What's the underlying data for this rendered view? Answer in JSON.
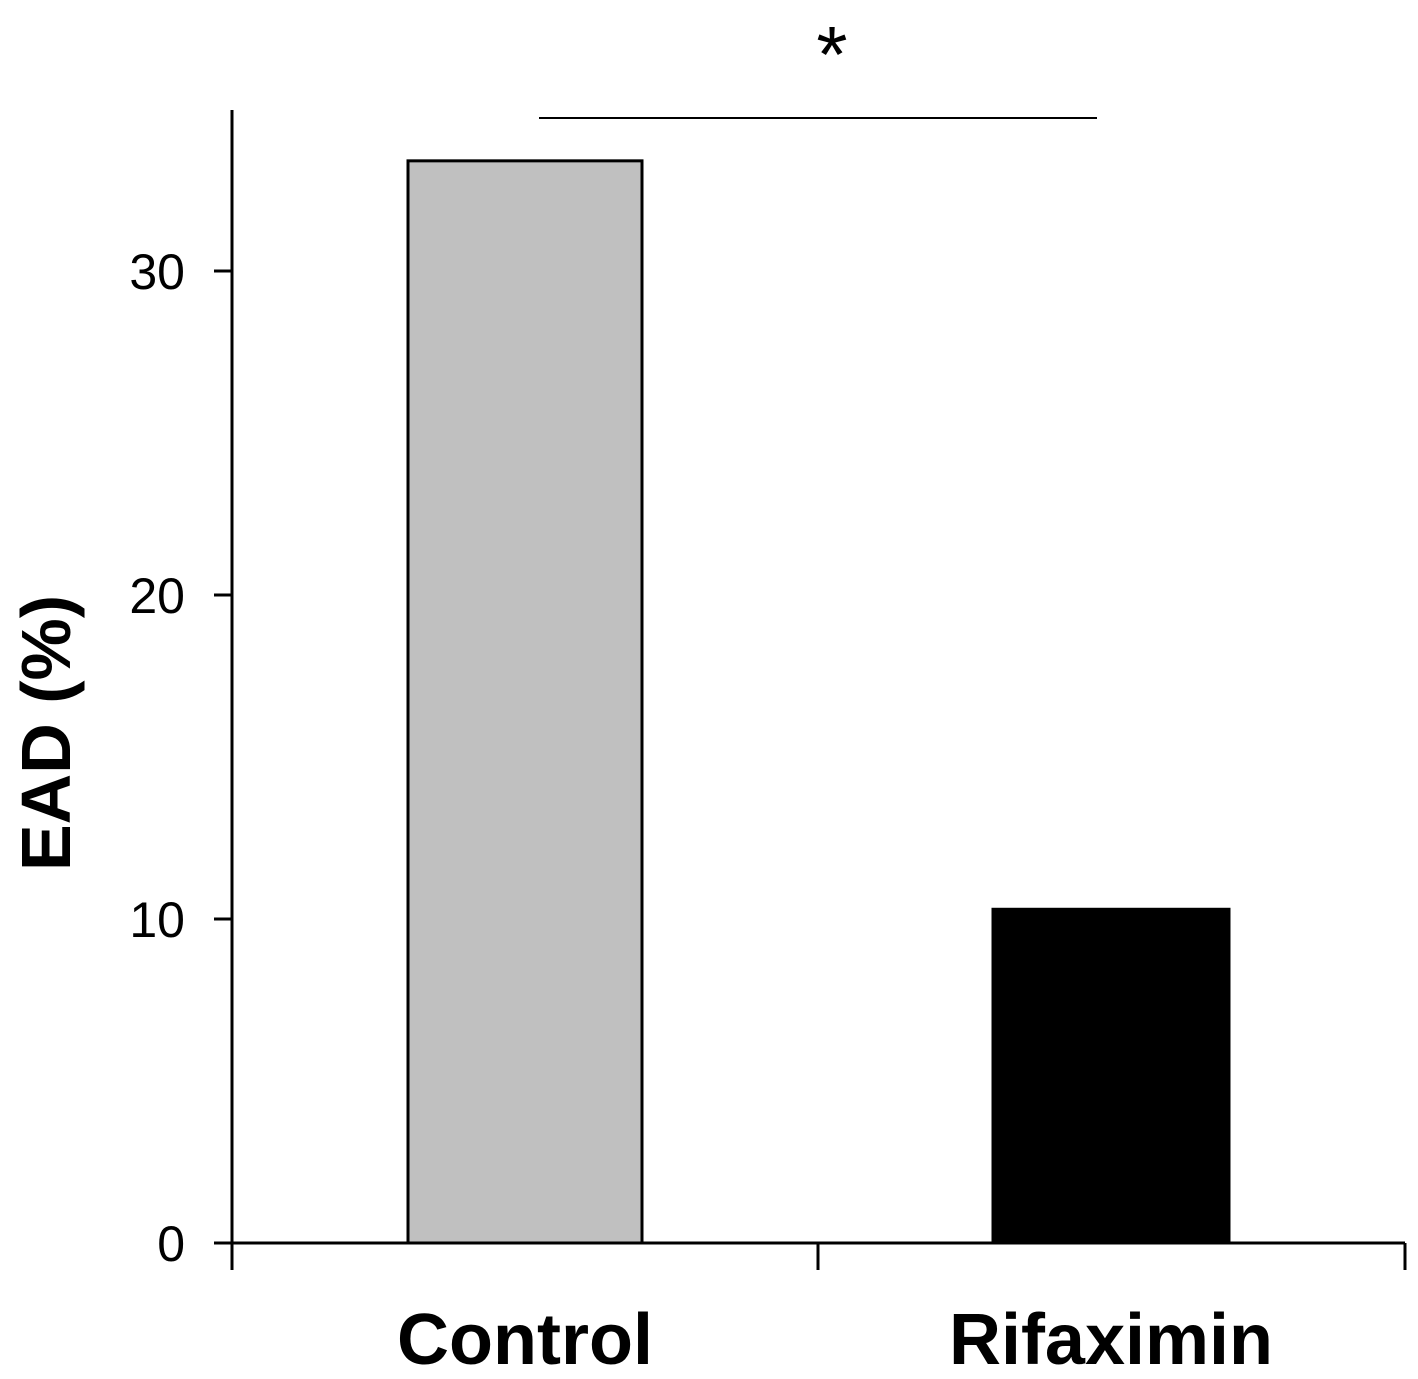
{
  "chart_data": {
    "type": "bar",
    "categories": [
      "Control",
      "Rifaximin"
    ],
    "values": [
      33.4,
      10.3
    ],
    "ylabel": "EAD (%)",
    "xlabel": "",
    "ylim": [
      0,
      35
    ],
    "yticks": [
      0,
      10,
      20,
      30
    ],
    "grid": false,
    "legend": "none",
    "bar_colors": [
      "#c0c0c0",
      "#000000"
    ],
    "significance": {
      "between": [
        "Control",
        "Rifaximin"
      ],
      "marker": "*"
    }
  }
}
